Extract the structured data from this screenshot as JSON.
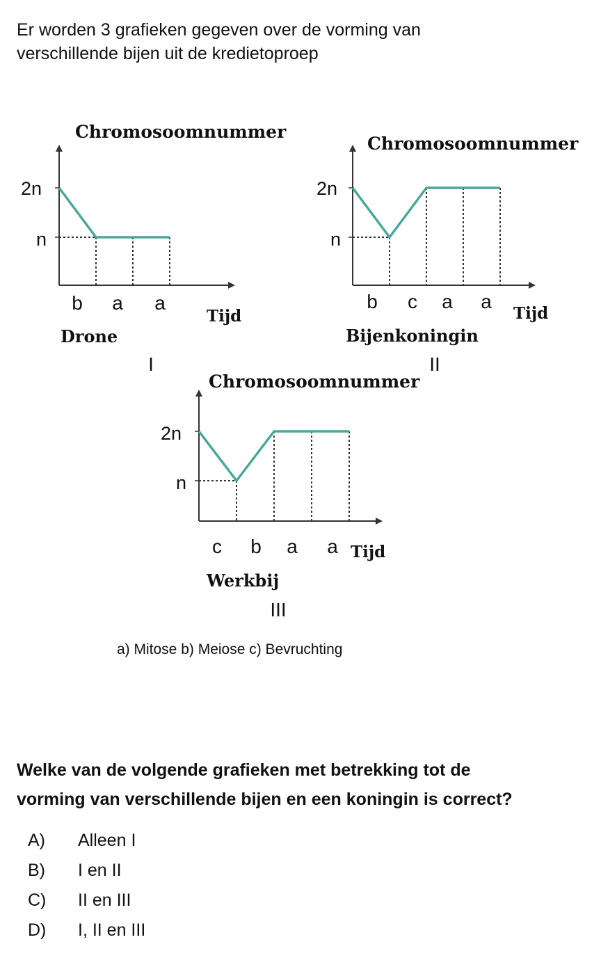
{
  "intro": {
    "line1": "Er worden 3 grafieken gegeven over de vorming van",
    "line2": "verschillende bijen uit de kredietoproep"
  },
  "colors": {
    "curve": "#4aa79a",
    "axis": "#333333"
  },
  "chart_data": [
    {
      "type": "line",
      "ylabel": "Chromosoomnummer",
      "xlabel": "Tijd",
      "yticks": [
        "2n",
        "n"
      ],
      "categories": [
        "b",
        "a",
        "a"
      ],
      "series": [
        {
          "x": [
            0,
            1,
            2,
            3
          ],
          "y": [
            "2n",
            "n",
            "n",
            "n"
          ]
        }
      ],
      "caption": "Drone",
      "numeral": "I"
    },
    {
      "type": "line",
      "ylabel": "Chromosoomnummer",
      "xlabel": "Tijd",
      "yticks": [
        "2n",
        "n"
      ],
      "categories": [
        "b",
        "c",
        "a",
        "a"
      ],
      "series": [
        {
          "x": [
            0,
            1,
            2,
            3,
            4
          ],
          "y": [
            "2n",
            "n",
            "2n",
            "2n",
            "2n"
          ]
        }
      ],
      "caption": "Bijenkoningin",
      "numeral": "II"
    },
    {
      "type": "line",
      "ylabel": "Chromosoomnummer",
      "xlabel": "Tijd",
      "yticks": [
        "2n",
        "n"
      ],
      "categories": [
        "c",
        "b",
        "a",
        "a"
      ],
      "series": [
        {
          "x": [
            0,
            1,
            2,
            3,
            4
          ],
          "y": [
            "2n",
            "n",
            "2n",
            "2n",
            "2n"
          ]
        }
      ],
      "caption": "Werkbij",
      "numeral": "III"
    }
  ],
  "legend": "a) Mitose b) Meiose c) Bevruchting",
  "question": {
    "line1": "Welke van de volgende grafieken met betrekking tot de",
    "line2": "vorming van verschillende bijen en een koningin is correct?"
  },
  "options": [
    {
      "letter": "A)",
      "text": "Alleen I"
    },
    {
      "letter": "B)",
      "text": "I en II"
    },
    {
      "letter": "C)",
      "text": "II en III"
    },
    {
      "letter": "D)",
      "text": "I, II en III"
    }
  ]
}
